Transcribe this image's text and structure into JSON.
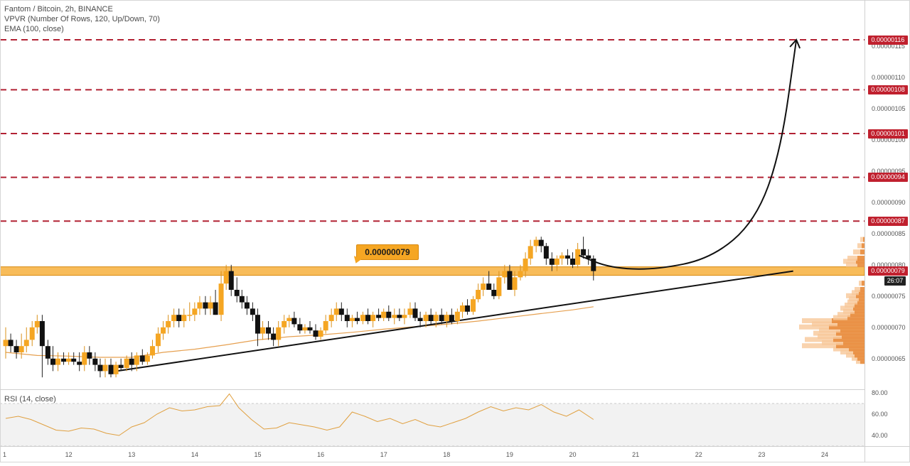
{
  "header": {
    "symbol_title": "Fantom / Bitcoin, 2h, BINANCE",
    "vpvr_label": "VPVR (Number Of Rows, 120, Up/Down, 70)",
    "ema_label": "EMA (100, close)"
  },
  "rsi_label": "RSI (14, close)",
  "colors": {
    "up_candle": "#f5a623",
    "down_candle": "#111111",
    "resistance_line": "#b22234",
    "support_zone": "#f5a623",
    "ema": "#e6a050",
    "rsi_line": "#e0a040",
    "price_tag_red": "#c0202e",
    "price_tag_black": "#222222"
  },
  "chart_data": [
    {
      "type": "candlestick",
      "interval": "2h",
      "ylim": [
        6.1e-07,
        1.21e-06
      ],
      "xlim": [
        11.0,
        24.6
      ],
      "x_ticks": [
        "1",
        "12",
        "13",
        "14",
        "15",
        "16",
        "17",
        "18",
        "19",
        "20",
        "21",
        "22",
        "23",
        "24"
      ],
      "y_ticks": [
        "0.00000065",
        "0.00000070",
        "0.00000075",
        "0.00000080",
        "0.00000085",
        "0.00000090",
        "0.00000095",
        "0.00000100",
        "0.00000105",
        "0.00000110",
        "0.00000115"
      ],
      "resistance_levels": [
        "0.00000087",
        "0.00000094",
        "0.00000101",
        "0.00000108",
        "0.00000116"
      ],
      "support_level": "0.00000079",
      "support_callout": "0.00000079",
      "current_price": "0.00000079",
      "countdown": "26:07",
      "candles": [
        [
          11.0,
          6.7e-07,
          7e-07,
          6.5e-07,
          6.8e-07
        ],
        [
          11.08,
          6.8e-07,
          6.9e-07,
          6.6e-07,
          6.7e-07
        ],
        [
          11.17,
          6.7e-07,
          6.8e-07,
          6.5e-07,
          6.6e-07
        ],
        [
          11.25,
          6.6e-07,
          6.9e-07,
          6.5e-07,
          6.7e-07
        ],
        [
          11.33,
          6.7e-07,
          7e-07,
          6.6e-07,
          6.8e-07
        ],
        [
          11.42,
          6.8e-07,
          7.1e-07,
          6.7e-07,
          7e-07
        ],
        [
          11.5,
          7e-07,
          7.2e-07,
          6.9e-07,
          7.1e-07
        ],
        [
          11.58,
          7.1e-07,
          7.2e-07,
          6.2e-07,
          6.7e-07
        ],
        [
          11.67,
          6.7e-07,
          6.8e-07,
          6.4e-07,
          6.5e-07
        ],
        [
          11.75,
          6.5e-07,
          6.7e-07,
          6.3e-07,
          6.4e-07
        ],
        [
          11.83,
          6.4e-07,
          6.6e-07,
          6.3e-07,
          6.5e-07
        ],
        [
          11.92,
          6.5e-07,
          6.6e-07,
          6.4e-07,
          6.45e-07
        ],
        [
          12.0,
          6.45e-07,
          6.6e-07,
          6.4e-07,
          6.5e-07
        ],
        [
          12.08,
          6.5e-07,
          6.6e-07,
          6.4e-07,
          6.45e-07
        ],
        [
          12.17,
          6.45e-07,
          6.6e-07,
          6.3e-07,
          6.4e-07
        ],
        [
          12.25,
          6.4e-07,
          6.7e-07,
          6.3e-07,
          6.6e-07
        ],
        [
          12.33,
          6.6e-07,
          6.7e-07,
          6.4e-07,
          6.5e-07
        ],
        [
          12.42,
          6.5e-07,
          6.6e-07,
          6.3e-07,
          6.4e-07
        ],
        [
          12.5,
          6.4e-07,
          6.5e-07,
          6.2e-07,
          6.3e-07
        ],
        [
          12.58,
          6.3e-07,
          6.5e-07,
          6.2e-07,
          6.4e-07
        ],
        [
          12.67,
          6.4e-07,
          6.5e-07,
          6.2e-07,
          6.25e-07
        ],
        [
          12.75,
          6.25e-07,
          6.45e-07,
          6.2e-07,
          6.4e-07
        ],
        [
          12.83,
          6.4e-07,
          6.5e-07,
          6.3e-07,
          6.35e-07
        ],
        [
          12.92,
          6.35e-07,
          6.55e-07,
          6.3e-07,
          6.5e-07
        ],
        [
          13.0,
          6.5e-07,
          6.6e-07,
          6.3e-07,
          6.4e-07
        ],
        [
          13.08,
          6.4e-07,
          6.6e-07,
          6.3e-07,
          6.55e-07
        ],
        [
          13.17,
          6.55e-07,
          6.65e-07,
          6.4e-07,
          6.45e-07
        ],
        [
          13.25,
          6.45e-07,
          6.6e-07,
          6.4e-07,
          6.55e-07
        ],
        [
          13.33,
          6.55e-07,
          6.8e-07,
          6.5e-07,
          6.7e-07
        ],
        [
          13.42,
          6.7e-07,
          7e-07,
          6.6e-07,
          6.9e-07
        ],
        [
          13.5,
          6.9e-07,
          7.1e-07,
          6.8e-07,
          7e-07
        ],
        [
          13.58,
          7e-07,
          7.2e-07,
          6.9e-07,
          7.1e-07
        ],
        [
          13.67,
          7.1e-07,
          7.3e-07,
          7e-07,
          7.2e-07
        ],
        [
          13.75,
          7.2e-07,
          7.3e-07,
          7e-07,
          7.1e-07
        ],
        [
          13.83,
          7.1e-07,
          7.3e-07,
          7e-07,
          7.2e-07
        ],
        [
          13.92,
          7.2e-07,
          7.4e-07,
          7.1e-07,
          7.2e-07
        ],
        [
          14.0,
          7.2e-07,
          7.4e-07,
          7.1e-07,
          7.3e-07
        ],
        [
          14.08,
          7.3e-07,
          7.5e-07,
          7.2e-07,
          7.4e-07
        ],
        [
          14.17,
          7.4e-07,
          7.5e-07,
          7.2e-07,
          7.3e-07
        ],
        [
          14.25,
          7.3e-07,
          7.5e-07,
          7.2e-07,
          7.4e-07
        ],
        [
          14.33,
          7.4e-07,
          7.6e-07,
          7.2e-07,
          7.2e-07
        ],
        [
          14.42,
          7.2e-07,
          7.9e-07,
          7.1e-07,
          7.7e-07
        ],
        [
          14.5,
          7.7e-07,
          8e-07,
          7.6e-07,
          7.9e-07
        ],
        [
          14.58,
          7.9e-07,
          8e-07,
          7.5e-07,
          7.6e-07
        ],
        [
          14.67,
          7.6e-07,
          7.8e-07,
          7.4e-07,
          7.5e-07
        ],
        [
          14.75,
          7.5e-07,
          7.6e-07,
          7.3e-07,
          7.4e-07
        ],
        [
          14.83,
          7.4e-07,
          7.5e-07,
          7.2e-07,
          7.3e-07
        ],
        [
          14.92,
          7.3e-07,
          7.4e-07,
          7.1e-07,
          7.2e-07
        ],
        [
          15.0,
          7.2e-07,
          7.3e-07,
          6.7e-07,
          6.9e-07
        ],
        [
          15.08,
          6.9e-07,
          7.1e-07,
          6.8e-07,
          7e-07
        ],
        [
          15.17,
          7e-07,
          7.1e-07,
          6.8e-07,
          6.9e-07
        ],
        [
          15.25,
          6.9e-07,
          7e-07,
          6.7e-07,
          6.8e-07
        ],
        [
          15.33,
          6.8e-07,
          7.1e-07,
          6.7e-07,
          7e-07
        ],
        [
          15.42,
          7e-07,
          7.2e-07,
          6.9e-07,
          7.1e-07
        ],
        [
          15.5,
          7.1e-07,
          7.2e-07,
          7e-07,
          7.15e-07
        ],
        [
          15.58,
          7.15e-07,
          7.25e-07,
          7e-07,
          7.05e-07
        ],
        [
          15.67,
          7.05e-07,
          7.15e-07,
          6.9e-07,
          6.95e-07
        ],
        [
          15.75,
          6.95e-07,
          7.05e-07,
          6.9e-07,
          7e-07
        ],
        [
          15.83,
          7e-07,
          7.1e-07,
          6.9e-07,
          6.95e-07
        ],
        [
          15.92,
          6.95e-07,
          7.05e-07,
          6.8e-07,
          6.85e-07
        ],
        [
          16.0,
          6.85e-07,
          7e-07,
          6.8e-07,
          6.95e-07
        ],
        [
          16.08,
          6.95e-07,
          7.2e-07,
          6.9e-07,
          7.1e-07
        ],
        [
          16.17,
          7.1e-07,
          7.3e-07,
          7e-07,
          7.2e-07
        ],
        [
          16.25,
          7.2e-07,
          7.4e-07,
          7.1e-07,
          7.3e-07
        ],
        [
          16.33,
          7.3e-07,
          7.4e-07,
          7.1e-07,
          7.2e-07
        ],
        [
          16.42,
          7.2e-07,
          7.3e-07,
          7e-07,
          7.1e-07
        ],
        [
          16.5,
          7.1e-07,
          7.2e-07,
          7e-07,
          7.15e-07
        ],
        [
          16.58,
          7.15e-07,
          7.25e-07,
          7.05e-07,
          7.1e-07
        ],
        [
          16.67,
          7.1e-07,
          7.25e-07,
          7.05e-07,
          7.2e-07
        ],
        [
          16.75,
          7.2e-07,
          7.3e-07,
          7.05e-07,
          7.1e-07
        ],
        [
          16.83,
          7.1e-07,
          7.25e-07,
          7e-07,
          7.2e-07
        ],
        [
          16.92,
          7.2e-07,
          7.3e-07,
          7.1e-07,
          7.15e-07
        ],
        [
          17.0,
          7.15e-07,
          7.3e-07,
          7.1e-07,
          7.25e-07
        ],
        [
          17.08,
          7.25e-07,
          7.35e-07,
          7.1e-07,
          7.15e-07
        ],
        [
          17.17,
          7.15e-07,
          7.3e-07,
          7.05e-07,
          7.2e-07
        ],
        [
          17.25,
          7.2e-07,
          7.3e-07,
          7.1e-07,
          7.15e-07
        ],
        [
          17.33,
          7.15e-07,
          7.3e-07,
          7.05e-07,
          7.2e-07
        ],
        [
          17.42,
          7.2e-07,
          7.4e-07,
          7.15e-07,
          7.3e-07
        ],
        [
          17.5,
          7.3e-07,
          7.4e-07,
          7.1e-07,
          7.15e-07
        ],
        [
          17.58,
          7.15e-07,
          7.25e-07,
          7e-07,
          7.1e-07
        ],
        [
          17.67,
          7.1e-07,
          7.25e-07,
          7e-07,
          7.2e-07
        ],
        [
          17.75,
          7.2e-07,
          7.3e-07,
          7.05e-07,
          7.1e-07
        ],
        [
          17.83,
          7.1e-07,
          7.25e-07,
          7e-07,
          7.2e-07
        ],
        [
          17.92,
          7.2e-07,
          7.3e-07,
          7.05e-07,
          7.1e-07
        ],
        [
          18.0,
          7.1e-07,
          7.25e-07,
          7e-07,
          7.2e-07
        ],
        [
          18.08,
          7.2e-07,
          7.3e-07,
          7.05e-07,
          7.1e-07
        ],
        [
          18.17,
          7.1e-07,
          7.3e-07,
          7.05e-07,
          7.25e-07
        ],
        [
          18.25,
          7.25e-07,
          7.4e-07,
          7.15e-07,
          7.35e-07
        ],
        [
          18.33,
          7.35e-07,
          7.45e-07,
          7.2e-07,
          7.25e-07
        ],
        [
          18.42,
          7.25e-07,
          7.5e-07,
          7.2e-07,
          7.45e-07
        ],
        [
          18.5,
          7.45e-07,
          7.7e-07,
          7.4e-07,
          7.6e-07
        ],
        [
          18.58,
          7.6e-07,
          7.8e-07,
          7.5e-07,
          7.7e-07
        ],
        [
          18.67,
          7.7e-07,
          7.9e-07,
          7.6e-07,
          7.6e-07
        ],
        [
          18.75,
          7.6e-07,
          7.7e-07,
          7.45e-07,
          7.5e-07
        ],
        [
          18.83,
          7.5e-07,
          7.9e-07,
          7.45e-07,
          7.8e-07
        ],
        [
          18.92,
          7.8e-07,
          8e-07,
          7.7e-07,
          7.9e-07
        ],
        [
          19.0,
          7.9e-07,
          8e-07,
          7.6e-07,
          7.6e-07
        ],
        [
          19.08,
          7.6e-07,
          7.9e-07,
          7.5e-07,
          7.8e-07
        ],
        [
          19.17,
          7.8e-07,
          8e-07,
          7.75e-07,
          7.9e-07
        ],
        [
          19.25,
          7.9e-07,
          8.2e-07,
          7.8e-07,
          8.1e-07
        ],
        [
          19.33,
          8.1e-07,
          8.4e-07,
          8e-07,
          8.3e-07
        ],
        [
          19.42,
          8.3e-07,
          8.45e-07,
          8.2e-07,
          8.4e-07
        ],
        [
          19.5,
          8.4e-07,
          8.45e-07,
          8.2e-07,
          8.3e-07
        ],
        [
          19.58,
          8.3e-07,
          8.35e-07,
          8e-07,
          8.1e-07
        ],
        [
          19.67,
          8.1e-07,
          8.2e-07,
          7.9e-07,
          8e-07
        ],
        [
          19.75,
          8e-07,
          8.15e-07,
          7.9e-07,
          8.1e-07
        ],
        [
          19.83,
          8.1e-07,
          8.2e-07,
          8e-07,
          8.15e-07
        ],
        [
          19.92,
          8.15e-07,
          8.25e-07,
          8e-07,
          8.1e-07
        ],
        [
          20.0,
          8.1e-07,
          8.2e-07,
          7.95e-07,
          8e-07
        ],
        [
          20.08,
          8e-07,
          8.35e-07,
          7.95e-07,
          8.25e-07
        ],
        [
          20.17,
          8.25e-07,
          8.45e-07,
          8.1e-07,
          8.15e-07
        ],
        [
          20.25,
          8.15e-07,
          8.25e-07,
          8e-07,
          8.1e-07
        ],
        [
          20.33,
          8.1e-07,
          8.15e-07,
          7.75e-07,
          7.9e-07
        ]
      ],
      "ema_100": [
        [
          11.0,
          6.6e-07
        ],
        [
          11.5,
          6.55e-07
        ],
        [
          12.0,
          6.54e-07
        ],
        [
          12.5,
          6.52e-07
        ],
        [
          13.0,
          6.52e-07
        ],
        [
          13.5,
          6.6e-07
        ],
        [
          14.0,
          6.65e-07
        ],
        [
          14.5,
          6.72e-07
        ],
        [
          15.0,
          6.8e-07
        ],
        [
          15.5,
          6.85e-07
        ],
        [
          16.0,
          6.88e-07
        ],
        [
          16.5,
          6.92e-07
        ],
        [
          17.0,
          6.97e-07
        ],
        [
          17.5,
          7.01e-07
        ],
        [
          18.0,
          7.05e-07
        ],
        [
          18.5,
          7.1e-07
        ],
        [
          19.0,
          7.16e-07
        ],
        [
          19.5,
          7.22e-07
        ],
        [
          20.0,
          7.28e-07
        ],
        [
          20.33,
          7.33e-07
        ]
      ],
      "trendline": [
        [
          12.76,
          6.3e-07
        ],
        [
          23.5,
          7.9e-07
        ]
      ],
      "projection_path": [
        [
          20.1,
          8.15e-07
        ],
        [
          20.6,
          7.95e-07
        ],
        [
          21.3,
          7.92e-07
        ],
        [
          22.2,
          8.1e-07
        ],
        [
          22.9,
          8.7e-07
        ],
        [
          23.3,
          9.8e-07
        ],
        [
          23.55,
          1.16e-06
        ]
      ]
    },
    {
      "type": "line",
      "title": "RSI (14, close)",
      "ylim": [
        30,
        82
      ],
      "y_ticks": [
        "80.00",
        "60.00",
        "40.00"
      ],
      "band": [
        30,
        70
      ],
      "x": [
        11.0,
        11.2,
        11.4,
        11.6,
        11.8,
        12.0,
        12.2,
        12.4,
        12.6,
        12.8,
        13.0,
        13.2,
        13.4,
        13.6,
        13.8,
        14.0,
        14.2,
        14.4,
        14.55,
        14.7,
        14.9,
        15.1,
        15.3,
        15.5,
        15.7,
        15.9,
        16.1,
        16.3,
        16.5,
        16.7,
        16.9,
        17.1,
        17.3,
        17.5,
        17.7,
        17.9,
        18.1,
        18.3,
        18.5,
        18.7,
        18.9,
        19.1,
        19.3,
        19.5,
        19.7,
        19.9,
        20.1,
        20.33
      ],
      "values": [
        56,
        58,
        55,
        50,
        45,
        44,
        47,
        46,
        42,
        40,
        48,
        52,
        60,
        66,
        63,
        64,
        67,
        68,
        79,
        66,
        55,
        46,
        47,
        52,
        50,
        48,
        45,
        48,
        62,
        58,
        53,
        56,
        51,
        55,
        50,
        48,
        52,
        56,
        62,
        67,
        63,
        66,
        64,
        69,
        62,
        58,
        64,
        55
      ]
    }
  ]
}
